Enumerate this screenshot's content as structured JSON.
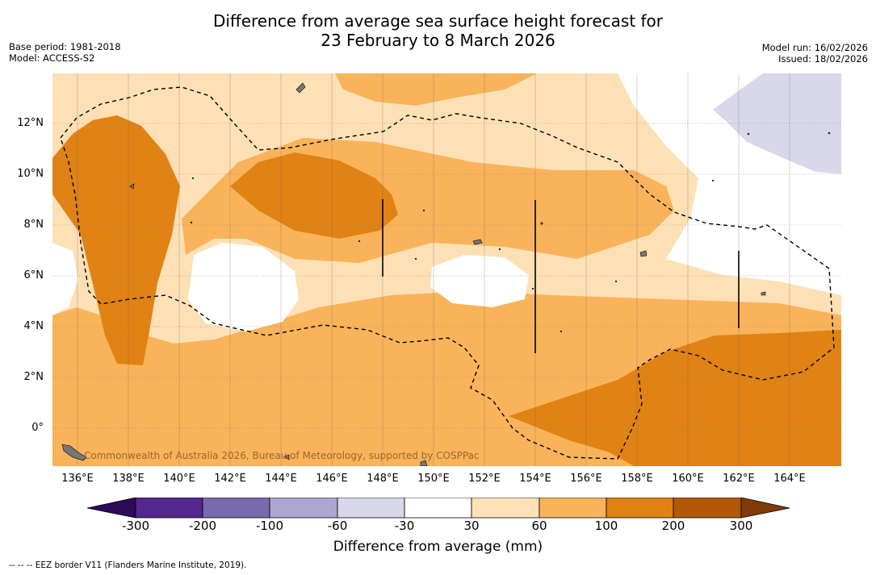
{
  "title_line1": "Difference from average sea surface height forecast for",
  "title_line2": "23 February to 8 March 2026",
  "base_period": "Base period: 1981-2018",
  "model": "Model: ACCESS-S2",
  "model_run": "Model run: 16/02/2026",
  "issued": "Issued: 18/02/2026",
  "credit": "Commonwealth of Australia 2026, Bureau of Meteorology, supported by COSPPac",
  "latitude_labels": [
    "12°N",
    "10°N",
    "8°N",
    "6°N",
    "4°N",
    "2°N",
    "0°"
  ],
  "longitude_labels": [
    "136°E",
    "138°E",
    "140°E",
    "142°E",
    "144°E",
    "146°E",
    "148°E",
    "150°E",
    "152°E",
    "154°E",
    "156°E",
    "158°E",
    "160°E",
    "162°E",
    "164°E"
  ],
  "colorbar": {
    "title": "Difference from average (mm)",
    "tick_labels": [
      "-300",
      "-200",
      "-100",
      "-60",
      "-30",
      "30",
      "60",
      "100",
      "200",
      "300"
    ],
    "colors": [
      "#2d0a5a",
      "#54278f",
      "#7a6aae",
      "#aca7d0",
      "#d8d8ea",
      "#ffffff",
      "#fde0b5",
      "#f9b35a",
      "#e08214",
      "#b35806",
      "#7f3b08"
    ]
  },
  "footnote": "--  --  -- EEZ border V11 (Flanders Marine Institute, 2019)."
}
